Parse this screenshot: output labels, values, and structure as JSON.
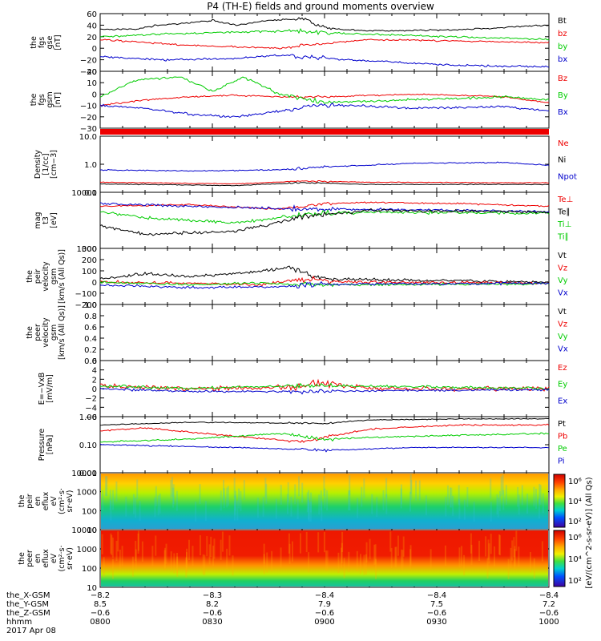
{
  "title": "P4 (TH-E) fields and ground moments overview",
  "colors": {
    "black": "#000000",
    "red": "#ee0000",
    "green": "#00cc00",
    "blue": "#0000cc"
  },
  "chart_data": [
    {
      "panel": "fgs_gse",
      "type": "line",
      "ylabel": [
        "the",
        "fgs",
        "gse",
        "[nT]"
      ],
      "ylim": [
        -40,
        60
      ],
      "ticks": [
        "60",
        "40",
        "20",
        "0",
        "−20",
        "−40"
      ],
      "series": [
        {
          "name": "Bt",
          "color": "black"
        },
        {
          "name": "bz",
          "color": "red"
        },
        {
          "name": "by",
          "color": "green"
        },
        {
          "name": "bx",
          "color": "blue"
        }
      ]
    },
    {
      "panel": "fgs_gsm",
      "type": "line",
      "ylabel": [
        "the",
        "fgs",
        "gsm",
        "[nT]"
      ],
      "ylim": [
        -30,
        20
      ],
      "ticks": [
        "20",
        "10",
        "0",
        "−10",
        "−20",
        "−30"
      ],
      "series": [
        {
          "name": "Bz",
          "color": "red"
        },
        {
          "name": "By",
          "color": "green"
        },
        {
          "name": "Bx",
          "color": "blue"
        }
      ]
    },
    {
      "panel": "density",
      "type": "line",
      "ylabel": [
        "Density",
        "[1/cc]",
        "[cm−3]"
      ],
      "ylog": true,
      "ticks": [
        "10.0",
        "1.0",
        "0.1"
      ],
      "series": [
        {
          "name": "Ne",
          "color": "red"
        },
        {
          "name": "Ni",
          "color": "black"
        },
        {
          "name": "Npot",
          "color": "blue"
        }
      ]
    },
    {
      "panel": "temperature",
      "type": "line",
      "ylabel": [
        "mag",
        "t3",
        "[eV]"
      ],
      "ylog": true,
      "ticks": [
        "10000",
        "1000"
      ],
      "series": [
        {
          "name": "Te⊥",
          "color": "red"
        },
        {
          "name": "Te∥",
          "color": "black"
        },
        {
          "name": "Ti⊥",
          "color": "green"
        },
        {
          "name": "Ti∥",
          "color": "green"
        }
      ]
    },
    {
      "panel": "peir_velocity",
      "type": "line",
      "ylabel": [
        "the",
        "peir",
        "velocity",
        "gsm",
        "[km/s (All Qs)]"
      ],
      "ylim": [
        -200,
        300
      ],
      "ticks": [
        "300",
        "200",
        "100",
        "0",
        "−100",
        "−200"
      ],
      "series": [
        {
          "name": "Vt",
          "color": "black"
        },
        {
          "name": "Vz",
          "color": "red"
        },
        {
          "name": "Vy",
          "color": "green"
        },
        {
          "name": "Vx",
          "color": "blue"
        }
      ]
    },
    {
      "panel": "peer_velocity",
      "type": "line",
      "ylabel": [
        "the",
        "peer",
        "velocity",
        "gsm",
        "[km/s (All Qs)]"
      ],
      "ylim": [
        0,
        1
      ],
      "ticks": [
        "1.0",
        "0.8",
        "0.6",
        "0.4",
        "0.2",
        "0.0"
      ],
      "series": [
        {
          "name": "Vt",
          "color": "black"
        },
        {
          "name": "Vz",
          "color": "red"
        },
        {
          "name": "Vy",
          "color": "green"
        },
        {
          "name": "Vx",
          "color": "blue"
        }
      ]
    },
    {
      "panel": "efield",
      "type": "line",
      "ylabel": [
        "E=−VxB",
        "[mV/m]"
      ],
      "ylim": [
        -6,
        6
      ],
      "ticks": [
        "6",
        "4",
        "2",
        "0",
        "−2",
        "−4",
        "−6"
      ],
      "series": [
        {
          "name": "Ez",
          "color": "red"
        },
        {
          "name": "Ey",
          "color": "green"
        },
        {
          "name": "Ex",
          "color": "blue"
        }
      ]
    },
    {
      "panel": "pressure",
      "type": "line",
      "ylabel": [
        "Pressure",
        "[nPa]"
      ],
      "ylog": true,
      "ticks": [
        "1.00",
        "0.10",
        "0.01"
      ],
      "series": [
        {
          "name": "Pt",
          "color": "black"
        },
        {
          "name": "Pb",
          "color": "red"
        },
        {
          "name": "Pe",
          "color": "green"
        },
        {
          "name": "Pi",
          "color": "blue"
        }
      ]
    },
    {
      "panel": "peir_spectrogram",
      "type": "heatmap",
      "ylabel": [
        "the",
        "peir",
        "en",
        "eflux",
        "eV",
        "(cm²·s·",
        "sr·eV)"
      ],
      "ticks": [
        "10000",
        "1000",
        "100",
        "10"
      ]
    },
    {
      "panel": "peer_spectrogram",
      "type": "heatmap",
      "ylabel": [
        "the",
        "peer",
        "en",
        "eflux",
        "eV",
        "(cm²·s·",
        "sr·eV)"
      ],
      "ticks": [
        "10000",
        "1000",
        "100",
        "10"
      ]
    }
  ],
  "colorbar": {
    "label": "[eV/(cm^2-s-sr-eV)] (All Qs)",
    "top_ticks": [
      "10⁶",
      "10⁴",
      "10²"
    ],
    "bottom_ticks": [
      "10⁶",
      "10⁴",
      "10²"
    ]
  },
  "xaxis": {
    "row_labels": [
      "the_X-GSM",
      "the_Y-GSM",
      "the_Z-GSM",
      "hhmm",
      "2017 Apr 08"
    ],
    "columns": [
      [
        "−8.2",
        "8.5",
        "−0.6",
        "0800"
      ],
      [
        "−8.3",
        "8.2",
        "−0.6",
        "0830"
      ],
      [
        "−8.4",
        "7.9",
        "−0.6",
        "0900"
      ],
      [
        "−8.4",
        "7.5",
        "−0.6",
        "0930"
      ],
      [
        "−8.4",
        "7.2",
        "−0.6",
        "1000"
      ]
    ]
  }
}
